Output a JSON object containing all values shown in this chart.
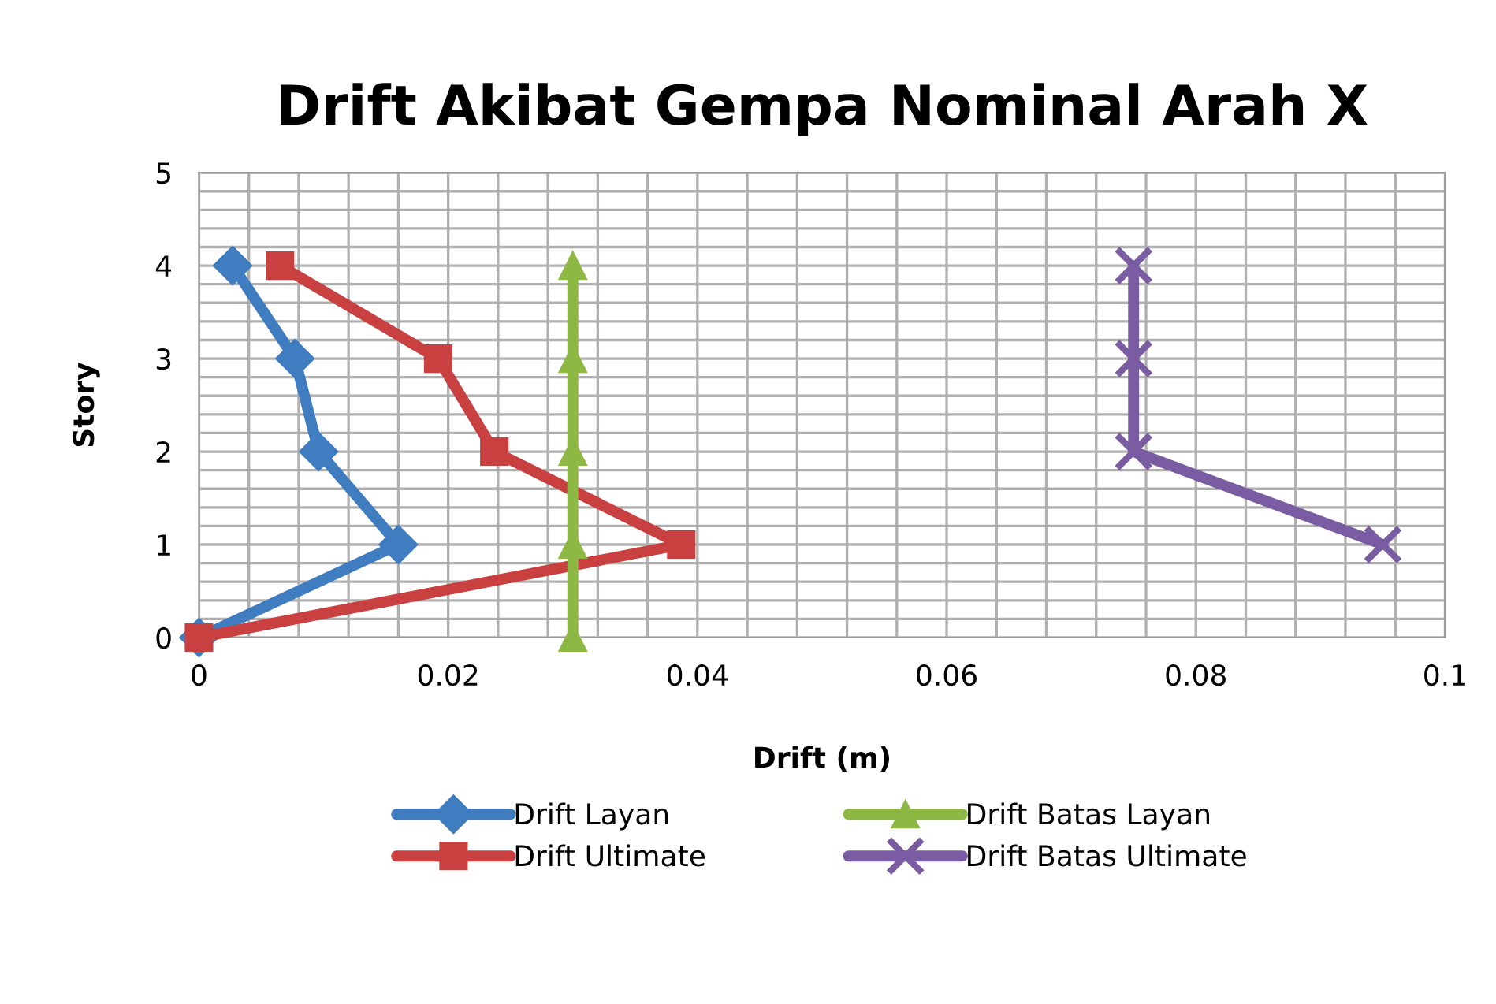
{
  "chart_data": {
    "type": "line",
    "title": "Drift Akibat Gempa Nominal Arah X",
    "xlabel": "Drift (m)",
    "ylabel": "Story",
    "xlim": [
      0,
      0.1
    ],
    "ylim": [
      0,
      5
    ],
    "xticks": [
      0,
      {
        "value": 0.004,
        "label": null
      },
      {
        "value": 0.008,
        "label": null
      },
      {
        "value": 0.012,
        "label": null
      },
      {
        "value": 0.016,
        "label": null
      },
      0.02,
      {
        "value": 0.024,
        "label": null
      },
      {
        "value": 0.028,
        "label": null
      },
      {
        "value": 0.032,
        "label": null
      },
      {
        "value": 0.036,
        "label": null
      },
      0.04,
      {
        "value": 0.044,
        "label": null
      },
      {
        "value": 0.048,
        "label": null
      },
      {
        "value": 0.052,
        "label": null
      },
      {
        "value": 0.056,
        "label": null
      },
      0.06,
      {
        "value": 0.064,
        "label": null
      },
      {
        "value": 0.068,
        "label": null
      },
      {
        "value": 0.072,
        "label": null
      },
      {
        "value": 0.076,
        "label": null
      },
      0.08,
      {
        "value": 0.084,
        "label": null
      },
      {
        "value": 0.088,
        "label": null
      },
      {
        "value": 0.092,
        "label": null
      },
      {
        "value": 0.096,
        "label": null
      },
      0.1
    ],
    "yticks": [
      0,
      {
        "value": 0.2,
        "label": null
      },
      {
        "value": 0.4,
        "label": null
      },
      {
        "value": 0.6,
        "label": null
      },
      {
        "value": 0.8,
        "label": null
      },
      1,
      {
        "value": 1.2,
        "label": null
      },
      {
        "value": 1.4,
        "label": null
      },
      {
        "value": 1.6,
        "label": null
      },
      {
        "value": 1.8,
        "label": null
      },
      2,
      {
        "value": 2.2,
        "label": null
      },
      {
        "value": 2.4,
        "label": null
      },
      {
        "value": 2.6,
        "label": null
      },
      {
        "value": 2.8,
        "label": null
      },
      3,
      {
        "value": 3.2,
        "label": null
      },
      {
        "value": 3.4,
        "label": null
      },
      {
        "value": 3.6,
        "label": null
      },
      {
        "value": 3.8,
        "label": null
      },
      4,
      {
        "value": 4.2,
        "label": null
      },
      {
        "value": 4.4,
        "label": null
      },
      {
        "value": 4.6,
        "label": null
      },
      {
        "value": 4.8,
        "label": null
      },
      5
    ],
    "grid": true,
    "legend": "bottom",
    "series": [
      {
        "name": "Drift Layan",
        "color": "#3f7cc0",
        "marker": "diamond",
        "x": [
          0,
          0.016,
          0.0096,
          0.0077,
          0.0027
        ],
        "values": [
          0,
          1,
          2,
          3,
          4
        ]
      },
      {
        "name": "Drift Ultimate",
        "color": "#c84040",
        "marker": "square",
        "x": [
          0,
          0.0387,
          0.0237,
          0.0192,
          0.0065
        ],
        "values": [
          0,
          1,
          2,
          3,
          4
        ]
      },
      {
        "name": "Drift Batas Layan",
        "color": "#8db843",
        "marker": "triangle",
        "x": [
          0.03,
          0.03,
          0.03,
          0.03,
          0.03
        ],
        "values": [
          0,
          1,
          2,
          3,
          4
        ]
      },
      {
        "name": "Drift Batas Ultimate",
        "color": "#7a5ca2",
        "marker": "cross",
        "x": [
          0.095,
          0.075,
          0.075,
          0.075
        ],
        "values": [
          1,
          2,
          3,
          4
        ]
      }
    ]
  }
}
